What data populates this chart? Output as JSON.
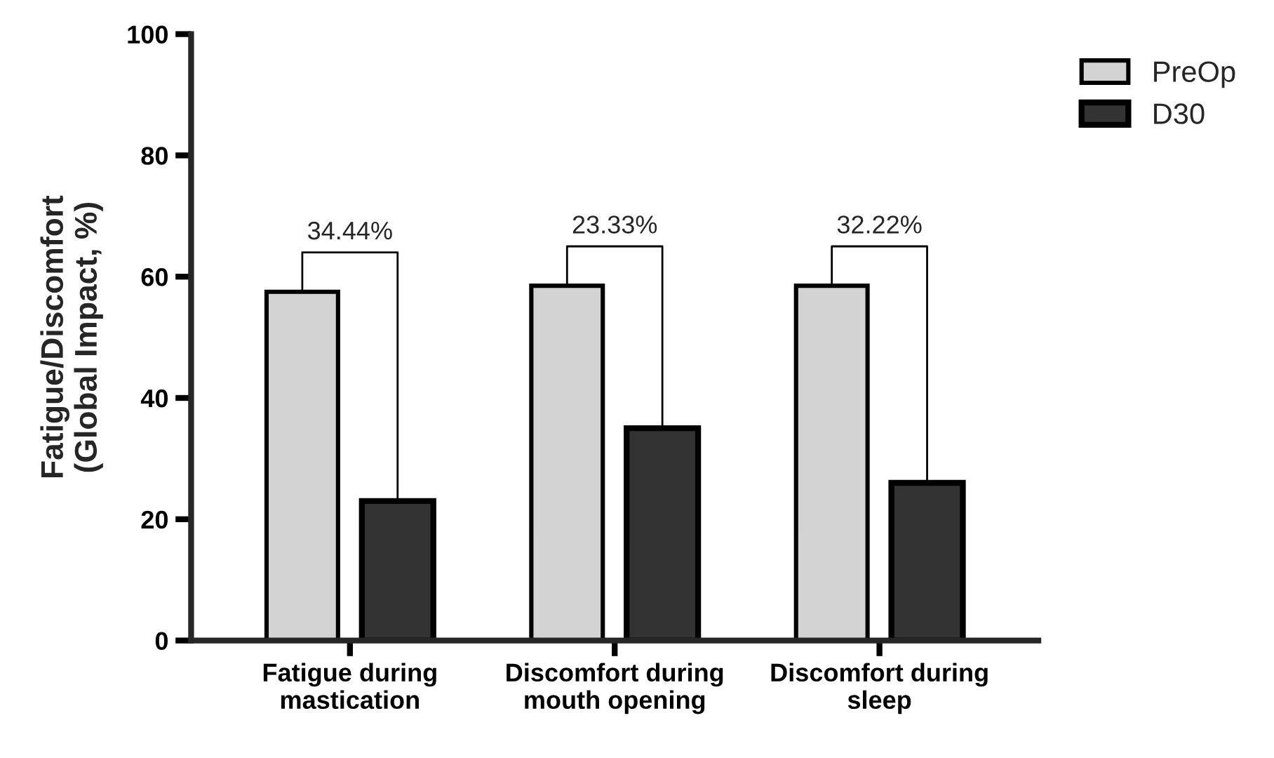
{
  "chart_data": {
    "type": "bar",
    "ylabel": "Fatigue/Discomfort\n(Global Impact, %)",
    "categories": [
      "Fatigue during\nmastication",
      "Discomfort during\nmouth opening",
      "Discomfort during\nsleep"
    ],
    "series": [
      {
        "name": "PreOp",
        "color": "#d3d3d3",
        "values": [
          57.5,
          58.5,
          58.5
        ]
      },
      {
        "name": "D30",
        "color": "#333333",
        "values": [
          23,
          35,
          26
        ]
      }
    ],
    "ylim": [
      0,
      100
    ],
    "yticks": [
      0,
      20,
      40,
      60,
      80,
      100
    ],
    "annotations": [
      "34.44%",
      "23.33%",
      "32.22%"
    ],
    "legend": "top right",
    "grid": false
  }
}
